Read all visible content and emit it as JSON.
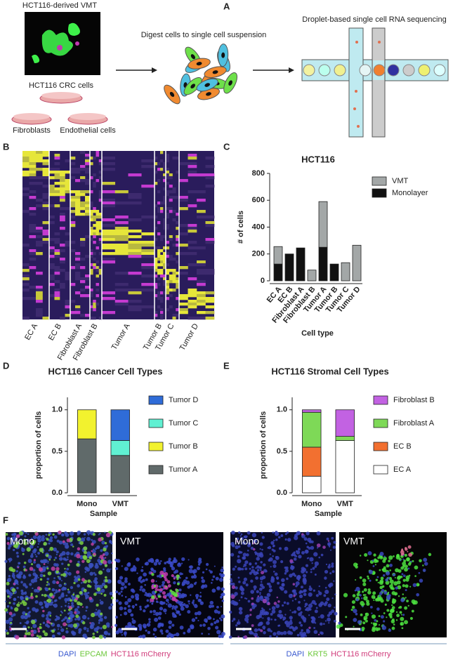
{
  "panel_a": {
    "letter": "A",
    "vmt_label": "HCT116-derived VMT",
    "crc_label": "HCT116 CRC cells",
    "fibroblasts": "Fibroblasts",
    "endothelial": "Endothelial cells",
    "digest": "Digest cells to single cell suspension",
    "sequencing": "Droplet-based single cell RNA sequencing"
  },
  "panel_b": {
    "letter": "B",
    "clusters": [
      "EC A",
      "EC B",
      "Fibroblast A",
      "Fibroblast B",
      "Tumor A",
      "Tumor B",
      "Tumor C",
      "Tumor D"
    ]
  },
  "chart_data": [
    {
      "type": "stacked_bar",
      "panel_label": "C",
      "title": "HCT116",
      "x_label": "Cell type",
      "y_label": "# of cells",
      "categories": [
        "EC A",
        "EC B",
        "Fibroblast A",
        "Fibroblast B",
        "Tumor A",
        "Tumor B",
        "Tumor C",
        "Tumor D"
      ],
      "series": [
        {
          "name": "Monolayer",
          "color": "#111111",
          "values": [
            125,
            200,
            245,
            0,
            250,
            125,
            0,
            0
          ]
        },
        {
          "name": "VMT",
          "color": "#a3a7a7",
          "values": [
            130,
            0,
            0,
            80,
            340,
            0,
            135,
            265
          ]
        }
      ],
      "ylim": [
        0,
        800
      ],
      "yticks": [
        0,
        200,
        400,
        600,
        800
      ]
    },
    {
      "type": "stacked_bar",
      "panel_label": "D",
      "title": "HCT116 Cancer Cell Types",
      "x_label": "Sample",
      "y_label": "proportion of cells",
      "categories": [
        "Mono",
        "VMT"
      ],
      "series": [
        {
          "name": "Tumor A",
          "color": "#606a6a",
          "values": [
            0.65,
            0.45
          ]
        },
        {
          "name": "Tumor B",
          "color": "#f2f22e",
          "values": [
            0.35,
            0
          ]
        },
        {
          "name": "Tumor C",
          "color": "#60f0d2",
          "values": [
            0,
            0.18
          ]
        },
        {
          "name": "Tumor D",
          "color": "#2f6cd8",
          "values": [
            0,
            0.37
          ]
        }
      ],
      "ylim": [
        0,
        1.15
      ],
      "yticks": [
        {
          "value": 0,
          "label": "0.0"
        },
        0.5,
        {
          "value": 1,
          "label": "1.0"
        }
      ]
    },
    {
      "type": "stacked_bar",
      "panel_label": "E",
      "title": "HCT116 Stromal Cell Types",
      "x_label": "Sample",
      "y_label": "proportion of cells",
      "categories": [
        "Mono",
        "VMT"
      ],
      "series": [
        {
          "name": "EC A",
          "color": "#ffffff",
          "values": [
            0.2,
            0.63
          ]
        },
        {
          "name": "EC B",
          "color": "#f27030",
          "values": [
            0.35,
            0
          ]
        },
        {
          "name": "Fibroblast A",
          "color": "#7ed957",
          "values": [
            0.42,
            0.05
          ]
        },
        {
          "name": "Fibroblast B",
          "color": "#c262e2",
          "values": [
            0.03,
            0.32
          ]
        }
      ],
      "ylim": [
        0,
        1.15
      ],
      "yticks": [
        {
          "value": 0,
          "label": "0.0"
        },
        0.5,
        {
          "value": 1,
          "label": "1.0"
        }
      ]
    }
  ],
  "panel_f": {
    "letter": "F",
    "images": [
      "Mono",
      "VMT",
      "Mono",
      "VMT"
    ],
    "captions": [
      [
        "DAPI",
        "EPCAM",
        "HCT116 mCherry"
      ],
      [
        "DAPI",
        "KRT5",
        "HCT116 mCherry"
      ]
    ]
  }
}
